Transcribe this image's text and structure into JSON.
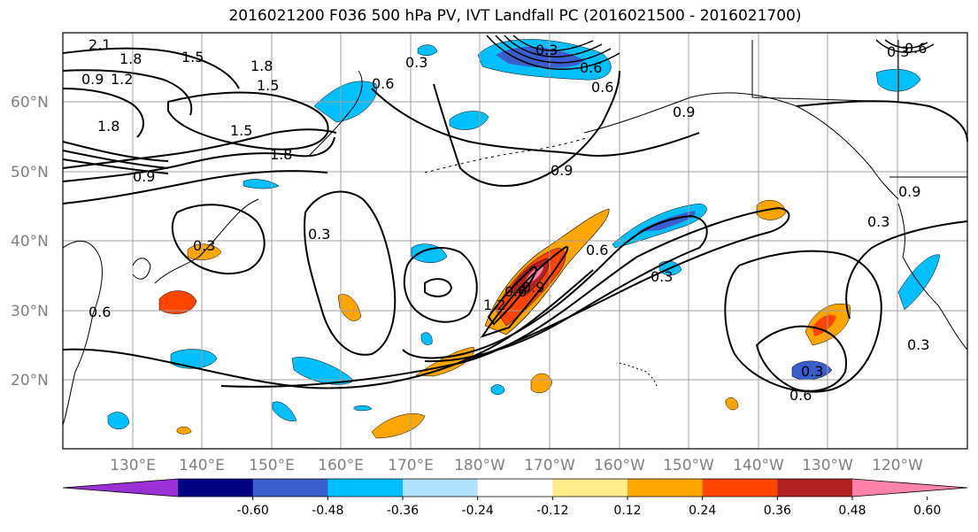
{
  "title": "2016021200 F036 500 hPa PV, IVT Landfall PC (2016021500 - 2016021700)",
  "lat_labels": [
    "60°N",
    "50°N",
    "40°N",
    "30°N",
    "20°N"
  ],
  "lon_labels": [
    "130°E",
    "140°E",
    "150°E",
    "160°E",
    "170°E",
    "180°W",
    "170°W",
    "160°W",
    "150°W",
    "140°W",
    "130°W",
    "120°W"
  ],
  "colorbar": {
    "ticks": [
      "-0.60",
      "-0.48",
      "-0.36",
      "-0.24",
      "-0.12",
      "0.12",
      "0.24",
      "0.36",
      "0.48",
      "0.60"
    ],
    "colors": [
      "#9b30d6",
      "#000080",
      "#3a5fcd",
      "#00bfff",
      "#b0e2ff",
      "#ffffff",
      "#ffec8b",
      "#ffa500",
      "#ff4500",
      "#b22222",
      "#ff82ab"
    ]
  },
  "contour_labels": [
    "2.1",
    "1.8",
    "1.5",
    "1.2",
    "0.9",
    "1.8",
    "1.5",
    "1.8",
    "1.5",
    "1.8",
    "0.9",
    "0.3",
    "0.6",
    "0.9",
    "0.6",
    "0.3",
    "0.9",
    "0.3",
    "0.9",
    "0.3",
    "0.3",
    "0.6",
    "0.3",
    "0.6",
    "0.3",
    "0.6",
    "0.9",
    "1.2",
    "0.6",
    "0.3",
    "0.6",
    "0.3",
    "0.6"
  ],
  "colors": {
    "contour": "#000000",
    "grid": "#a0a0a0",
    "coast": "#000000"
  }
}
